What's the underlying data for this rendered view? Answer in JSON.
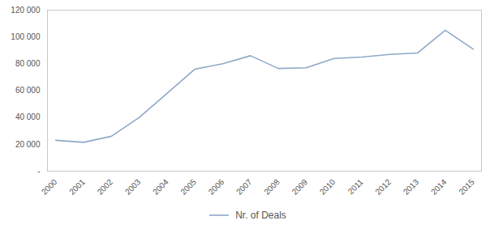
{
  "chart_data": {
    "type": "line",
    "x": [
      2000,
      2001,
      2002,
      2003,
      2004,
      2005,
      2006,
      2007,
      2008,
      2009,
      2010,
      2011,
      2012,
      2013,
      2014,
      2015
    ],
    "series": [
      {
        "name": "Nr. of Deals",
        "color": "#8fa8c8",
        "values": [
          23000,
          21500,
          26000,
          40000,
          58000,
          76000,
          80000,
          86000,
          76500,
          77000,
          84000,
          85000,
          87000,
          88000,
          105000,
          91000
        ]
      }
    ],
    "xlim": [
      1999.7,
      2015.3
    ],
    "xticks": [
      2000,
      2001,
      2002,
      2003,
      2004,
      2005,
      2006,
      2007,
      2008,
      2009,
      2010,
      2011,
      2012,
      2013,
      2014,
      2015
    ],
    "ylim": [
      0,
      120000
    ],
    "yticks": [
      {
        "value": 0,
        "label": "-"
      },
      {
        "value": 20000,
        "label": "20 000"
      },
      {
        "value": 40000,
        "label": "40 000"
      },
      {
        "value": 60000,
        "label": "60 000"
      },
      {
        "value": 80000,
        "label": "80 000"
      },
      {
        "value": 100000,
        "label": "100 000"
      },
      {
        "value": 120000,
        "label": "120 000"
      }
    ],
    "grid": false,
    "legend": "bottom"
  }
}
